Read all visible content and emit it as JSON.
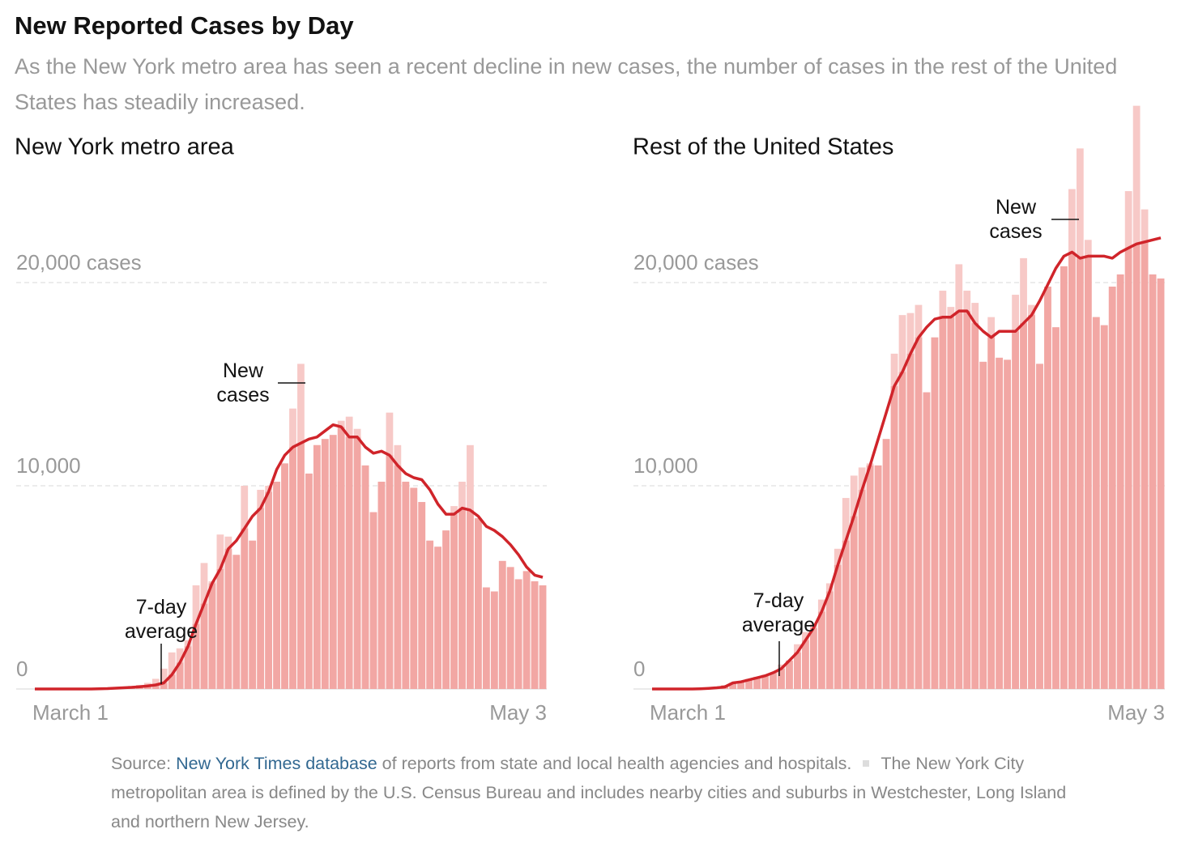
{
  "header": {
    "title": "New Reported Cases by Day",
    "subtitle": "As the New York metro area has seen a recent decline in new cases, the number of cases in the rest of the United States has steadily increased."
  },
  "chart_data": [
    {
      "type": "bar",
      "title": "New York metro area",
      "categories": [
        "March 1",
        null,
        null,
        null,
        null,
        null,
        null,
        null,
        null,
        null,
        null,
        null,
        null,
        null,
        null,
        null,
        null,
        null,
        null,
        null,
        null,
        null,
        null,
        null,
        null,
        null,
        null,
        null,
        null,
        null,
        null,
        null,
        null,
        null,
        null,
        null,
        null,
        null,
        null,
        null,
        null,
        null,
        null,
        null,
        null,
        null,
        null,
        null,
        null,
        null,
        null,
        null,
        null,
        null,
        null,
        null,
        null,
        null,
        null,
        null,
        null,
        null,
        null,
        "May 3"
      ],
      "series": [
        {
          "name": "New cases",
          "type": "bar",
          "color": "#f7c9c7",
          "under_color": "#f2a7a4",
          "values": [
            0,
            0,
            0,
            0,
            0,
            0,
            0,
            0,
            20,
            40,
            60,
            100,
            150,
            200,
            300,
            500,
            1000,
            1800,
            2000,
            2400,
            5100,
            6200,
            5300,
            7600,
            7500,
            6600,
            10000,
            7300,
            9800,
            10000,
            10200,
            11100,
            13800,
            16000,
            10600,
            12000,
            12300,
            12500,
            13200,
            13400,
            12800,
            11000,
            8700,
            10200,
            13600,
            12000,
            10200,
            9900,
            9200,
            7300,
            7000,
            7800,
            9000,
            10200,
            12000,
            8400,
            5000,
            4800,
            6300,
            6000,
            5400,
            5800,
            5300,
            5100
          ]
        },
        {
          "name": "7-day average",
          "type": "line",
          "color": "#d0242a",
          "values": [
            0,
            0,
            0,
            0,
            0,
            0,
            0,
            0,
            10,
            20,
            40,
            60,
            80,
            110,
            150,
            200,
            300,
            700,
            1300,
            2100,
            3200,
            4200,
            5200,
            5900,
            6900,
            7300,
            7900,
            8500,
            8900,
            9700,
            10800,
            11500,
            11900,
            12100,
            12300,
            12400,
            12700,
            13000,
            12900,
            12400,
            12400,
            11900,
            11600,
            11700,
            11500,
            11000,
            10600,
            10400,
            10300,
            9800,
            9100,
            8600,
            8600,
            8900,
            8800,
            8500,
            8000,
            7800,
            7500,
            7100,
            6600,
            6000,
            5600,
            5500
          ]
        }
      ],
      "ylim": [
        0,
        30000
      ],
      "yticks": [
        0,
        {
          "value": 10000,
          "label": "10,000"
        },
        {
          "value": 20000,
          "label": "20,000 cases"
        }
      ],
      "grid": true
    },
    {
      "type": "bar",
      "title": "Rest of the United States",
      "categories": [
        "March 1",
        null,
        null,
        null,
        null,
        null,
        null,
        null,
        null,
        null,
        null,
        null,
        null,
        null,
        null,
        null,
        null,
        null,
        null,
        null,
        null,
        null,
        null,
        null,
        null,
        null,
        null,
        null,
        null,
        null,
        null,
        null,
        null,
        null,
        null,
        null,
        null,
        null,
        null,
        null,
        null,
        null,
        null,
        null,
        null,
        null,
        null,
        null,
        null,
        null,
        null,
        null,
        null,
        null,
        null,
        null,
        null,
        null,
        null,
        null,
        null,
        null,
        null,
        "May 3"
      ],
      "series": [
        {
          "name": "New cases",
          "type": "bar",
          "color": "#f7c9c7",
          "under_color": "#f2a7a4",
          "values": [
            0,
            0,
            0,
            0,
            0,
            10,
            20,
            50,
            100,
            200,
            300,
            400,
            500,
            600,
            700,
            800,
            1200,
            1400,
            2200,
            2800,
            3200,
            4400,
            5200,
            6900,
            9400,
            10500,
            10900,
            11100,
            11000,
            12300,
            16500,
            18400,
            18500,
            18900,
            14600,
            17300,
            19600,
            18800,
            20900,
            19600,
            19000,
            16100,
            18300,
            16300,
            16200,
            19400,
            21200,
            18900,
            16000,
            19800,
            17800,
            20800,
            24600,
            26600,
            22100,
            18300,
            17900,
            19800,
            20400,
            24500,
            28700,
            23600,
            20400,
            20200
          ]
        },
        {
          "name": "7-day average",
          "type": "line",
          "color": "#d0242a",
          "values": [
            0,
            0,
            0,
            0,
            0,
            0,
            10,
            30,
            60,
            100,
            300,
            350,
            450,
            550,
            650,
            800,
            1000,
            1400,
            1800,
            2400,
            3000,
            3800,
            4800,
            6100,
            7300,
            8500,
            9800,
            11000,
            12300,
            13600,
            14900,
            15600,
            16500,
            17300,
            17800,
            18200,
            18300,
            18300,
            18600,
            18600,
            18000,
            17600,
            17300,
            17600,
            17600,
            17600,
            18000,
            18400,
            19100,
            19900,
            20700,
            21300,
            21500,
            21200,
            21300,
            21300,
            21300,
            21200,
            21500,
            21700,
            21900,
            22000,
            22100,
            22200
          ]
        }
      ],
      "ylim": [
        0,
        30000
      ],
      "yticks": [
        0,
        {
          "value": 10000,
          "label": "10,000"
        },
        {
          "value": 20000,
          "label": "20,000 cases"
        }
      ],
      "grid": true
    }
  ],
  "footer": {
    "source_prefix": "Source:",
    "source_link": "New York Times database",
    "source_text": "of reports from state and local health agencies and hospitals.",
    "note": "The New York City metropolitan area is defined by the U.S. Census Bureau and includes nearby cities and suburbs in Westchester, Long Island and northern New Jersey."
  }
}
